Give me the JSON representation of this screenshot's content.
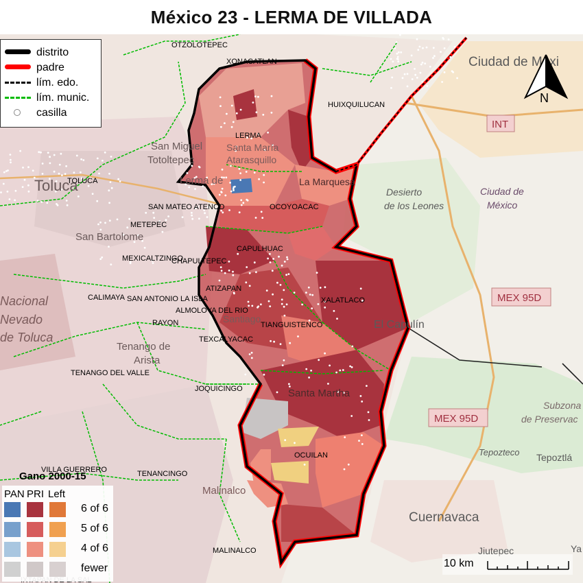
{
  "title": "México 23 - LERMA DE VILLADA",
  "legend": {
    "items": [
      {
        "label": "distrito",
        "type": "district"
      },
      {
        "label": "padre",
        "type": "parent"
      },
      {
        "label": "lím. edo.",
        "type": "state"
      },
      {
        "label": "lím. munic.",
        "type": "muni"
      },
      {
        "label": "casilla",
        "type": "casilla"
      }
    ]
  },
  "gano": {
    "title": "Gano 2000-15",
    "columns": [
      "PAN",
      "PRI",
      "Left"
    ],
    "rows": [
      "6 of 6",
      "5 of 6",
      "4 of 6",
      "fewer"
    ],
    "colors": {
      "PAN": [
        "#4a78b4",
        "#78a0cc",
        "#a9c6e0",
        "#d0d0d0"
      ],
      "PRI": [
        "#a8333e",
        "#d65c5c",
        "#ee9080",
        "#d0c8c8"
      ],
      "Left": [
        "#e07838",
        "#f0a050",
        "#f5d090",
        "#d8d0d0"
      ]
    }
  },
  "municipalities": [
    {
      "name": "OTZOLOTEPEC"
    },
    {
      "name": "XONACATLAN"
    },
    {
      "name": "HUIXQUILUCAN"
    },
    {
      "name": "LERMA"
    },
    {
      "name": "TOLUCA"
    },
    {
      "name": "SAN MATEO ATENCO"
    },
    {
      "name": "OCOYOACAC"
    },
    {
      "name": "METEPEC"
    },
    {
      "name": "CAPULHUAC"
    },
    {
      "name": "MEXICALTZINGO"
    },
    {
      "name": "CHAPULTEPEC"
    },
    {
      "name": "XALATLACO"
    },
    {
      "name": "CALIMAYA"
    },
    {
      "name": "SAN ANTONIO LA ISLA"
    },
    {
      "name": "TIANGUISTENCO"
    },
    {
      "name": "ALMOLOYA DEL RIO"
    },
    {
      "name": "RAYON"
    },
    {
      "name": "TEXCALYACAC"
    },
    {
      "name": "TENANGO DEL VALLE"
    },
    {
      "name": "JOQUICINGO"
    },
    {
      "name": "OCUILAN"
    },
    {
      "name": "VILLA GUERRERO"
    },
    {
      "name": "TENANCINGO"
    },
    {
      "name": "MALINALCO"
    },
    {
      "name": "ATIZAPAN"
    },
    {
      "name": "IXTAPAN DE LA SAL"
    }
  ],
  "basemap_labels": [
    {
      "text": "Ciudad de Méxi"
    },
    {
      "text": "Ciudad de"
    },
    {
      "text": "México"
    },
    {
      "text": "Desierto"
    },
    {
      "text": "de los Leones"
    },
    {
      "text": "INT"
    },
    {
      "text": "MEX 95D"
    },
    {
      "text": "MEX 95D"
    },
    {
      "text": "El Capulín"
    },
    {
      "text": "Subzona"
    },
    {
      "text": "de Preservac"
    },
    {
      "text": "Tepozteco"
    },
    {
      "text": "Tepoztlá"
    },
    {
      "text": "Cuernavaca"
    },
    {
      "text": "Jiutepec"
    },
    {
      "text": "Ya"
    },
    {
      "text": "Santa Martha"
    },
    {
      "text": "La Marquesa"
    },
    {
      "text": "Toluca"
    },
    {
      "text": "San Miguel"
    },
    {
      "text": "Toto­ltepec"
    },
    {
      "text": "San Bartolome"
    },
    {
      "text": "Tenango de"
    },
    {
      "text": "Arista"
    },
    {
      "text": "Santa María"
    },
    {
      "text": "Atarasquillo"
    },
    {
      "text": "Lerma de"
    },
    {
      "text": "Santiago"
    },
    {
      "text": "Nacional"
    },
    {
      "text": "Nevado"
    },
    {
      "text": "de Toluca"
    },
    {
      "text": "Malinalco"
    }
  ],
  "scalebar": {
    "label": "10 km"
  },
  "north": {
    "label": "N"
  },
  "colors": {
    "district_border": "#000000",
    "parent_border": "#ff0000",
    "state_line": "#000000",
    "muni_line": "#00cc00",
    "pri_6": "#a8333e",
    "pri_5": "#d65c5c",
    "pri_4": "#ee9080",
    "pan_6": "#4a78b4",
    "left_4": "#f5d090",
    "fewer": "#c8c4c4"
  }
}
